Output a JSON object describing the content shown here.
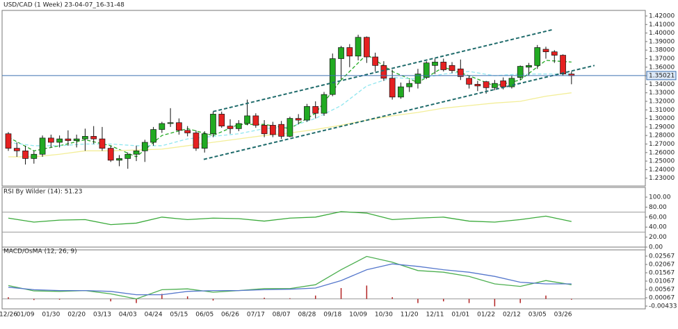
{
  "chart_data": [
    {
      "type": "candlestick",
      "title": "USD/CAD (1 Week) 23-04-07_16-31-48",
      "categories": [
        "12/26",
        null,
        "01/09",
        null,
        null,
        "01/30",
        null,
        null,
        "02/20",
        null,
        null,
        "03/13",
        null,
        null,
        "04/03",
        null,
        null,
        "04/24",
        null,
        null,
        "05/15",
        null,
        null,
        "06/05",
        null,
        null,
        "06/26",
        null,
        null,
        "07/17",
        null,
        null,
        "08/07",
        null,
        null,
        "08/28",
        null,
        null,
        "09/18",
        null,
        null,
        "10/09",
        null,
        null,
        "10/30",
        null,
        null,
        "11/20",
        null,
        null,
        "12/11",
        null,
        null,
        "01/01",
        null,
        null,
        "01/22",
        null,
        null,
        "02/12",
        null,
        null,
        "03/05",
        null,
        null,
        "03/26",
        null
      ],
      "open": [
        1.282,
        1.265,
        1.262,
        1.253,
        1.258,
        1.277,
        1.272,
        1.276,
        1.274,
        1.276,
        1.279,
        1.276,
        1.265,
        1.251,
        1.253,
        1.258,
        1.262,
        1.272,
        1.287,
        1.294,
        1.295,
        1.286,
        1.283,
        1.265,
        1.282,
        1.305,
        1.291,
        1.288,
        1.294,
        1.303,
        1.292,
        1.292,
        1.293,
        1.279,
        1.3,
        1.298,
        1.314,
        1.306,
        1.328,
        1.37,
        1.383,
        1.373,
        1.395,
        1.372,
        1.362,
        1.347,
        1.325,
        1.337,
        1.341,
        1.348,
        1.362,
        1.366,
        1.362,
        1.358,
        1.347,
        1.34,
        1.343,
        1.336,
        1.344,
        1.337,
        1.348,
        1.36,
        1.362,
        1.381,
        1.378,
        1.374,
        1.352
      ],
      "high": [
        1.284,
        1.272,
        1.268,
        1.262,
        1.28,
        1.281,
        1.28,
        1.286,
        1.281,
        1.288,
        1.291,
        1.29,
        1.268,
        1.257,
        1.26,
        1.268,
        1.275,
        1.29,
        1.296,
        1.312,
        1.3,
        1.291,
        1.286,
        1.285,
        1.308,
        1.308,
        1.299,
        1.298,
        1.322,
        1.306,
        1.298,
        1.296,
        1.297,
        1.302,
        1.305,
        1.317,
        1.32,
        1.331,
        1.376,
        1.385,
        1.387,
        1.398,
        1.396,
        1.377,
        1.367,
        1.357,
        1.342,
        1.345,
        1.358,
        1.367,
        1.37,
        1.37,
        1.366,
        1.369,
        1.35,
        1.344,
        1.344,
        1.345,
        1.348,
        1.35,
        1.362,
        1.365,
        1.386,
        1.384,
        1.38,
        1.375,
        1.355
      ],
      "low": [
        1.262,
        1.255,
        1.246,
        1.247,
        1.255,
        1.266,
        1.266,
        1.268,
        1.266,
        1.262,
        1.27,
        1.262,
        1.249,
        1.244,
        1.241,
        1.25,
        1.249,
        1.268,
        1.283,
        1.29,
        1.281,
        1.279,
        1.262,
        1.26,
        1.278,
        1.289,
        1.282,
        1.285,
        1.292,
        1.289,
        1.278,
        1.278,
        1.276,
        1.278,
        1.293,
        1.296,
        1.3,
        1.303,
        1.326,
        1.346,
        1.36,
        1.368,
        1.365,
        1.355,
        1.344,
        1.322,
        1.323,
        1.331,
        1.335,
        1.346,
        1.352,
        1.355,
        1.353,
        1.345,
        1.335,
        1.332,
        1.329,
        1.333,
        1.334,
        1.335,
        1.345,
        1.35,
        1.358,
        1.37,
        1.365,
        1.35,
        1.34
      ],
      "close": [
        1.265,
        1.262,
        1.253,
        1.258,
        1.277,
        1.272,
        1.276,
        1.274,
        1.276,
        1.279,
        1.276,
        1.265,
        1.251,
        1.253,
        1.258,
        1.262,
        1.272,
        1.287,
        1.294,
        1.295,
        1.286,
        1.283,
        1.265,
        1.282,
        1.305,
        1.291,
        1.288,
        1.294,
        1.303,
        1.292,
        1.282,
        1.281,
        1.279,
        1.3,
        1.298,
        1.314,
        1.306,
        1.328,
        1.37,
        1.383,
        1.373,
        1.395,
        1.372,
        1.362,
        1.347,
        1.325,
        1.337,
        1.341,
        1.352,
        1.365,
        1.366,
        1.357,
        1.356,
        1.349,
        1.34,
        1.338,
        1.336,
        1.341,
        1.337,
        1.347,
        1.361,
        1.362,
        1.383,
        1.378,
        1.374,
        1.352,
        1.35
      ],
      "up_color": "#22aa22",
      "down_color": "#e52121",
      "ylim": [
        1.2208,
        1.4265
      ],
      "yticks": [
        {
          "value": 1.23,
          "label": "1.23000"
        },
        {
          "value": 1.24,
          "label": "1.24000"
        },
        {
          "value": 1.25,
          "label": "1.25000"
        },
        {
          "value": 1.26,
          "label": "1.26000"
        },
        {
          "value": 1.27,
          "label": "1.27000"
        },
        {
          "value": 1.28,
          "label": "1.28000"
        },
        {
          "value": 1.29,
          "label": "1.29000"
        },
        {
          "value": 1.3,
          "label": "1.30000"
        },
        {
          "value": 1.31,
          "label": "1.31000"
        },
        {
          "value": 1.32,
          "label": "1.32000"
        },
        {
          "value": 1.33,
          "label": "1.33000"
        },
        {
          "value": 1.34,
          "label": "1.34000"
        },
        {
          "value": 1.35,
          "label": "1.35000"
        },
        {
          "value": 1.36,
          "label": "1.36000"
        },
        {
          "value": 1.37,
          "label": "1.37000"
        },
        {
          "value": 1.38,
          "label": "1.38000"
        },
        {
          "value": 1.39,
          "label": "1.39000"
        },
        {
          "value": 1.4,
          "label": "1.40000"
        },
        {
          "value": 1.41,
          "label": "1.41000"
        },
        {
          "value": 1.42,
          "label": "1.42000"
        }
      ],
      "price_line": 1.35021,
      "price_line_color": "#3a6fb0",
      "series": [
        {
          "color": "#22aa22",
          "dash": true,
          "x": [
            0,
            3,
            6,
            9,
            12,
            15,
            18,
            21,
            24,
            27,
            30,
            33,
            36,
            39,
            42,
            45,
            48,
            51,
            54,
            57,
            60,
            63,
            66
          ],
          "values": [
            1.278,
            1.262,
            1.268,
            1.275,
            1.268,
            1.255,
            1.28,
            1.288,
            1.28,
            1.293,
            1.293,
            1.288,
            1.306,
            1.345,
            1.375,
            1.355,
            1.342,
            1.36,
            1.35,
            1.338,
            1.345,
            1.368,
            1.366
          ]
        },
        {
          "color": "#8ee6ef",
          "dash": true,
          "x": [
            0,
            3,
            6,
            9,
            12,
            15,
            18,
            21,
            24,
            27,
            30,
            33,
            36,
            39,
            42,
            45,
            48,
            51,
            54,
            57,
            60,
            63,
            66
          ],
          "values": [
            1.272,
            1.268,
            1.268,
            1.27,
            1.27,
            1.268,
            1.268,
            1.276,
            1.279,
            1.282,
            1.288,
            1.29,
            1.3,
            1.315,
            1.338,
            1.348,
            1.346,
            1.352,
            1.355,
            1.35,
            1.352,
            1.352,
            1.352
          ]
        },
        {
          "color": "#f3ee98",
          "dash": false,
          "x": [
            0,
            3,
            6,
            9,
            12,
            15,
            18,
            21,
            24,
            27,
            30,
            33,
            36,
            39,
            42,
            45,
            48,
            51,
            54,
            57,
            60,
            63,
            66
          ],
          "values": [
            1.255,
            1.255,
            1.258,
            1.262,
            1.262,
            1.263,
            1.264,
            1.268,
            1.272,
            1.276,
            1.28,
            1.283,
            1.287,
            1.292,
            1.298,
            1.303,
            1.307,
            1.312,
            1.315,
            1.318,
            1.32,
            1.326,
            1.33
          ]
        }
      ],
      "trendlines": [
        {
          "color": "#1f6b6b",
          "x": [
            24,
            63.8
          ],
          "values": [
            1.308,
            1.404
          ]
        },
        {
          "color": "#1f6b6b",
          "x": [
            22.9,
            68.7
          ],
          "values": [
            1.252,
            1.362
          ]
        }
      ]
    },
    {
      "type": "line",
      "title": "RSI By Wilder (14): 51.23",
      "ylim": [
        -2.8,
        102.8
      ],
      "yticks": [
        {
          "value": 0,
          "label": "0.00"
        },
        {
          "value": 20,
          "label": "20.00"
        },
        {
          "value": 40,
          "label": "40.00"
        },
        {
          "value": 60,
          "label": "60.00"
        },
        {
          "value": 80,
          "label": "80.00"
        },
        {
          "value": 100,
          "label": "100.00"
        }
      ],
      "levels": [
        70,
        30
      ],
      "series": [
        {
          "color": "#3aaa3a",
          "x": [
            0,
            3,
            6,
            9,
            12,
            15,
            18,
            21,
            24,
            27,
            30,
            33,
            36,
            39,
            42,
            45,
            48,
            51,
            54,
            57,
            60,
            63,
            66
          ],
          "values": [
            58,
            50,
            54,
            55,
            45,
            48,
            60,
            55,
            58,
            57,
            52,
            58,
            60,
            71,
            68,
            55,
            58,
            60,
            52,
            50,
            55,
            62,
            51.23
          ]
        }
      ]
    },
    {
      "type": "macd",
      "title": "MACD/OsMA (12, 26, 9)",
      "ylim": [
        -0.006,
        0.02775
      ],
      "yticks": [
        -0.00433,
        0.00067,
        0.00567,
        0.01067,
        0.01567,
        0.02067,
        0.02567
      ],
      "series": [
        {
          "color": "#4caf50",
          "x": [
            0,
            3,
            6,
            9,
            12,
            15,
            18,
            21,
            24,
            27,
            30,
            33,
            36,
            39,
            42,
            45,
            48,
            51,
            54,
            57,
            60,
            63,
            66
          ],
          "values": [
            0.008,
            0.0048,
            0.0045,
            0.005,
            0.003,
            0.0,
            0.0055,
            0.006,
            0.004,
            0.005,
            0.0062,
            0.0062,
            0.0085,
            0.0175,
            0.0255,
            0.022,
            0.017,
            0.016,
            0.0135,
            0.009,
            0.0075,
            0.011,
            0.0085
          ]
        },
        {
          "color": "#5577cc",
          "x": [
            0,
            3,
            6,
            9,
            12,
            15,
            18,
            21,
            24,
            27,
            30,
            33,
            36,
            39,
            42,
            45,
            48,
            51,
            54,
            57,
            60,
            63,
            66
          ],
          "values": [
            0.007,
            0.0055,
            0.005,
            0.005,
            0.0045,
            0.0025,
            0.0025,
            0.0045,
            0.005,
            0.005,
            0.0055,
            0.0058,
            0.0065,
            0.011,
            0.0175,
            0.021,
            0.0195,
            0.0175,
            0.016,
            0.0135,
            0.01,
            0.009,
            0.009
          ]
        }
      ],
      "histogram": {
        "color": "#b22222",
        "x": [
          0,
          3,
          6,
          9,
          12,
          15,
          18,
          21,
          24,
          27,
          30,
          33,
          36,
          39,
          42,
          45,
          48,
          51,
          54,
          57,
          60,
          63,
          66
        ],
        "values": [
          0.001,
          -0.0007,
          -0.0005,
          0.0,
          -0.0015,
          -0.0025,
          0.003,
          0.0015,
          -0.001,
          0.0,
          0.0007,
          0.0004,
          0.002,
          0.0065,
          0.008,
          0.001,
          -0.0025,
          -0.0015,
          -0.0025,
          -0.0045,
          -0.0025,
          0.002,
          -0.0005
        ]
      }
    }
  ]
}
